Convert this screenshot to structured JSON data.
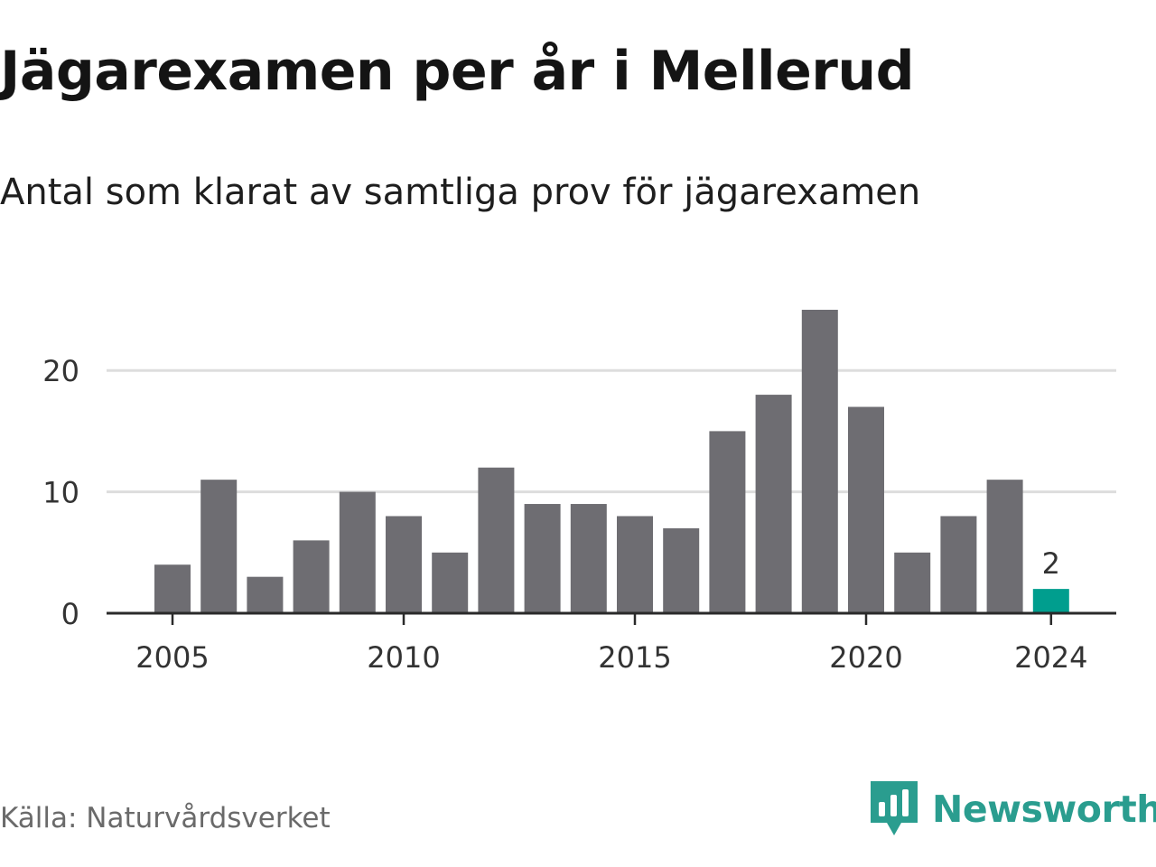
{
  "header": {
    "title": "Jägarexamen per år i Mellerud",
    "subtitle": "Antal som klarat av samtliga prov för jägarexamen"
  },
  "footer": {
    "source": "Källa: Naturvårdsverket",
    "brand_name": "Newsworthy",
    "brand_icon": "newsworthy-logo-icon"
  },
  "colors": {
    "bar": "#6e6d72",
    "highlight": "#009e8e",
    "grid": "#dddddd",
    "axis": "#2a2a2a",
    "brand": "#2a9d8f"
  },
  "chart_data": {
    "type": "bar",
    "title": "Jägarexamen per år i Mellerud",
    "subtitle": "Antal som klarat av samtliga prov för jägarexamen",
    "x": [
      2005,
      2006,
      2007,
      2008,
      2009,
      2010,
      2011,
      2012,
      2013,
      2014,
      2015,
      2016,
      2017,
      2018,
      2019,
      2020,
      2021,
      2022,
      2023,
      2024
    ],
    "values": [
      4,
      11,
      3,
      6,
      10,
      8,
      5,
      12,
      9,
      9,
      8,
      7,
      15,
      18,
      25,
      17,
      5,
      8,
      11,
      2
    ],
    "x_ticks": [
      2005,
      2010,
      2015,
      2020,
      2024
    ],
    "y_ticks": [
      0,
      10,
      20
    ],
    "ylim": [
      0,
      25
    ],
    "grid": true,
    "highlight": {
      "x": 2024,
      "label": "2"
    },
    "xlabel": "",
    "ylabel": ""
  }
}
